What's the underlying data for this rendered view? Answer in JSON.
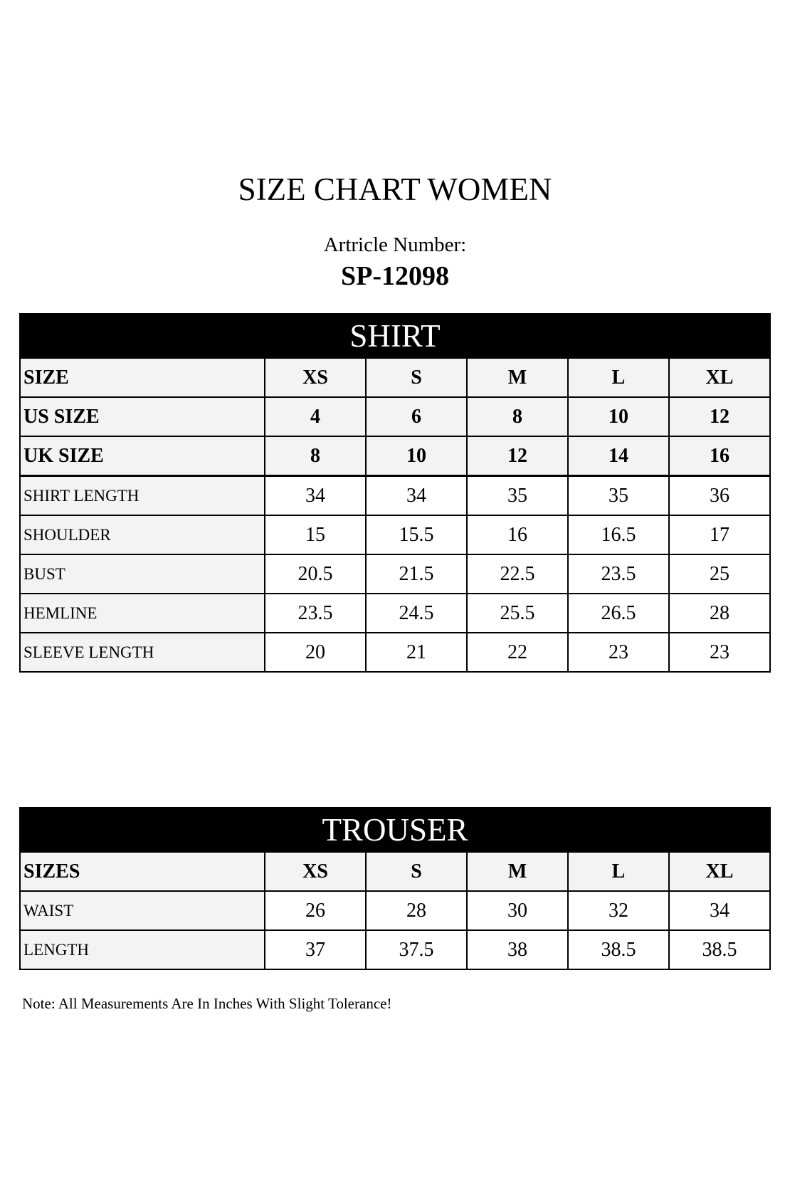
{
  "title": "SIZE CHART WOMEN",
  "article_label": "Artricle Number:",
  "article_number": "SP-12098",
  "shirt": {
    "heading": "SHIRT",
    "header_rows": [
      {
        "label": "SIZE",
        "values": [
          "XS",
          "S",
          "M",
          "L",
          "XL"
        ]
      },
      {
        "label": "US SIZE",
        "values": [
          "4",
          "6",
          "8",
          "10",
          "12"
        ]
      },
      {
        "label": "UK SIZE",
        "values": [
          "8",
          "10",
          "12",
          "14",
          "16"
        ]
      }
    ],
    "rows": [
      {
        "label": "SHIRT LENGTH",
        "values": [
          "34",
          "34",
          "35",
          "35",
          "36"
        ]
      },
      {
        "label": "SHOULDER",
        "values": [
          "15",
          "15.5",
          "16",
          "16.5",
          "17"
        ]
      },
      {
        "label": "BUST",
        "values": [
          "20.5",
          "21.5",
          "22.5",
          "23.5",
          "25"
        ]
      },
      {
        "label": "HEMLINE",
        "values": [
          "23.5",
          "24.5",
          "25.5",
          "26.5",
          "28"
        ]
      },
      {
        "label": "SLEEVE LENGTH",
        "values": [
          "20",
          "21",
          "22",
          "23",
          "23"
        ]
      }
    ]
  },
  "trouser": {
    "heading": "TROUSER",
    "header": {
      "label": "SIZES",
      "values": [
        "XS",
        "S",
        "M",
        "L",
        "XL"
      ]
    },
    "rows": [
      {
        "label": "WAIST",
        "values": [
          "26",
          "28",
          "30",
          "32",
          "34"
        ]
      },
      {
        "label": "LENGTH",
        "values": [
          "37",
          "37.5",
          "38",
          "38.5",
          "38.5"
        ]
      }
    ]
  },
  "note": "Note: All Measurements Are In Inches With Slight Tolerance!"
}
